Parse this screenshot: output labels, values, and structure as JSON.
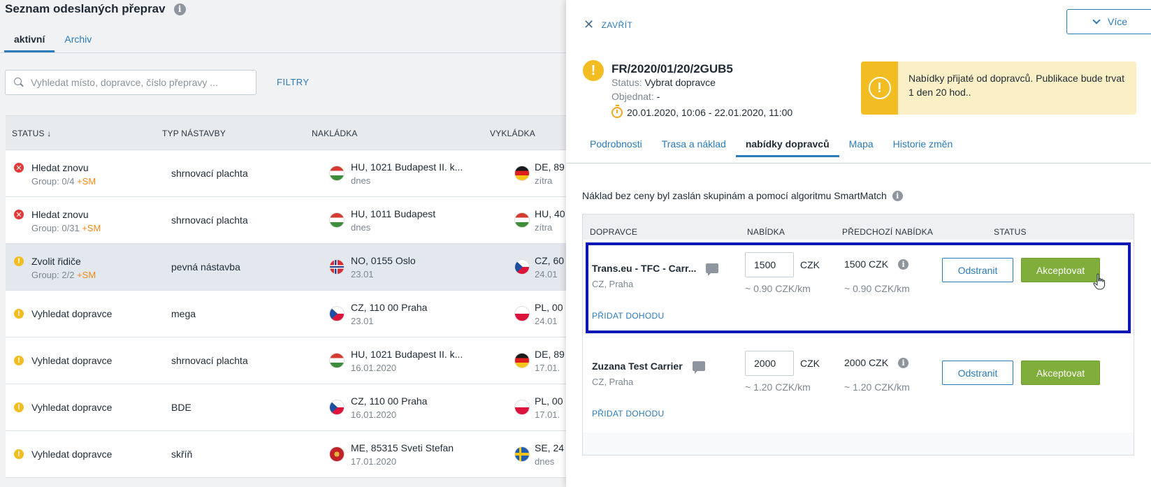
{
  "list": {
    "title": "Seznam odeslaných přeprav",
    "tabs": [
      {
        "label": "aktivní"
      },
      {
        "label": "Archiv"
      }
    ],
    "search_placeholder": "Vyhledat místo, dopravce, číslo přepravy ...",
    "filters_label": "FILTRY",
    "columns": {
      "status": "STATUS ↓",
      "type": "TYP NÁSTAVBY",
      "loading": "NAKLÁDKA",
      "unloading": "VYKLÁDKA"
    },
    "rows": [
      {
        "status": "Hledat znovu",
        "group": "Group: 0/4",
        "sm": "+SM",
        "type": "shrnovací plachta",
        "load": "HU, 1021 Budapest II. k...",
        "load_date": "dnes",
        "unload": "DE, 89",
        "unload_date": "zítra"
      },
      {
        "status": "Hledat znovu",
        "group": "Group: 0/31",
        "sm": "+SM",
        "type": "shrnovací plachta",
        "load": "HU, 1011 Budapest",
        "load_date": "dnes",
        "unload": "HU, 40",
        "unload_date": "zítra"
      },
      {
        "status": "Zvolit řidiče",
        "group": "Group: 2/2",
        "sm": "+SM",
        "type": "pevná nástavba",
        "load": "NO, 0155 Oslo",
        "load_date": "23.01",
        "unload": "CZ, 60",
        "unload_date": "24.01"
      },
      {
        "status": "Vyhledat dopravce",
        "type": "mega",
        "load": "CZ, 110 00 Praha",
        "load_date": "23.01",
        "unload": "PL, 00",
        "unload_date": "24.01"
      },
      {
        "status": "Vyhledat dopravce",
        "type": "shrnovací plachta",
        "load": "HU, 1021 Budapest II. k...",
        "load_date": "16.01.2020",
        "unload": "DE, 89",
        "unload_date": "17.01."
      },
      {
        "status": "Vyhledat dopravce",
        "type": "BDE",
        "load": "CZ, 110 00 Praha",
        "load_date": "16.01.2020",
        "unload": "PL, 00",
        "unload_date": "17.01."
      },
      {
        "status": "Vyhledat dopravce",
        "type": "skříň",
        "load": "ME, 85315 Sveti Stefan",
        "load_date": "17.01.2020",
        "unload": "SE, 24",
        "unload_date": "dnes"
      }
    ]
  },
  "panel": {
    "close_label": "ZAVŘÍT",
    "more_label": "Více",
    "ref": "FR/2020/01/20/2GUB5",
    "status_label": "Status:",
    "status_value": "Vybrat dopravce",
    "ordered_label": "Objednat:",
    "ordered_value": "-",
    "time_range": "20.01.2020, 10:06 - 22.01.2020, 11:00",
    "notice": "Nabídky přijaté od dopravců. Publikace bude trvat 1 den 20 hod..",
    "tabs": [
      {
        "label": "Podrobnosti"
      },
      {
        "label": "Trasa a náklad"
      },
      {
        "label": "nabídky dopravců"
      },
      {
        "label": "Mapa"
      },
      {
        "label": "Historie změn"
      }
    ],
    "note": "Náklad bez ceny byl zaslán skupinám a pomocí algoritmu SmartMatch",
    "offer_columns": {
      "carrier": "DOPRAVCE",
      "offer": "NABÍDKA",
      "previous": "PŘEDCHOZÍ NABÍDKA",
      "status": "STATUS"
    },
    "offers": [
      {
        "carrier": "Trans.eu - TFC - Carr...",
        "location": "CZ, Praha",
        "add_deal": "PŘIDAT DOHODU",
        "price": "1500",
        "currency": "CZK",
        "per_km": "~ 0.90  CZK/km",
        "prev_price": "1500  CZK",
        "prev_per_km": "~ 0.90  CZK/km",
        "remove_label": "Odstranit",
        "accept_label": "Akceptovat"
      },
      {
        "carrier": "Zuzana Test Carrier",
        "location": "CZ, Praha",
        "add_deal": "PŘIDAT DOHODU",
        "price": "2000",
        "currency": "CZK",
        "per_km": "~ 1.20  CZK/km",
        "prev_price": "2000  CZK",
        "prev_per_km": "~ 1.20  CZK/km",
        "remove_label": "Odstranit",
        "accept_label": "Akceptovat"
      }
    ]
  },
  "colors": {
    "accent": "#2b7bb9",
    "warning": "#f2bd22",
    "error": "#e03a3a",
    "accept": "#7fae3a",
    "highlight": "#0a17b4",
    "sm": "#f08a17"
  }
}
